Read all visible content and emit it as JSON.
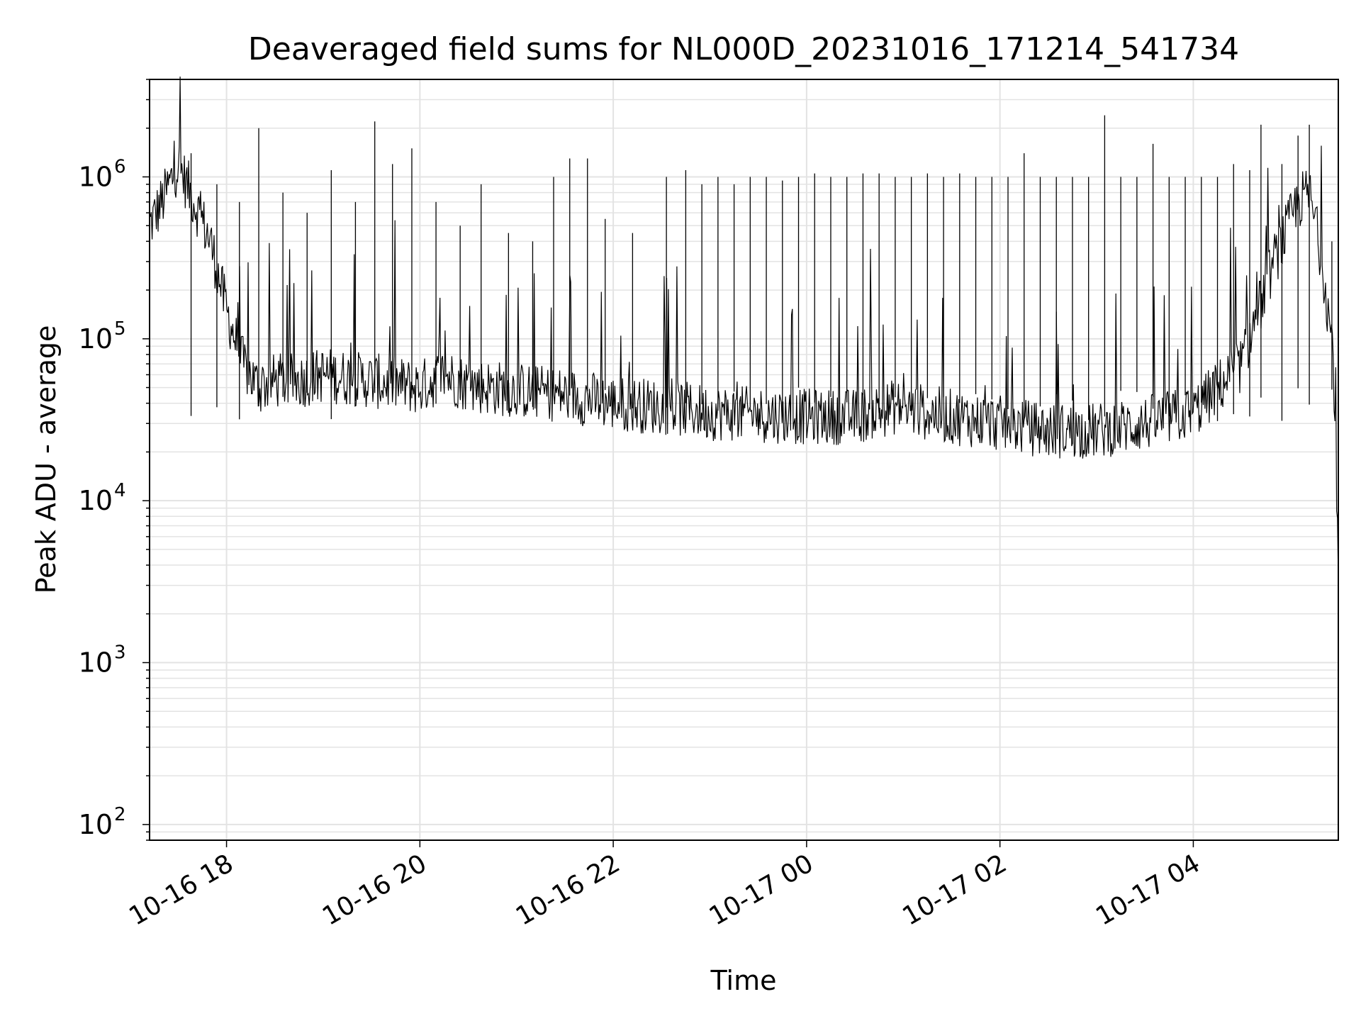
{
  "chart_data": {
    "type": "line",
    "title": "Deaveraged field sums for NL000D_20231016_171214_541734",
    "xlabel": "Time",
    "ylabel": "Peak ADU - average",
    "yscale": "log",
    "ylim": [
      80,
      4000000
    ],
    "xlim": [
      "2023-10-16T17:12:14",
      "2023-10-17T05:30:00"
    ],
    "x_ticks": [
      {
        "t": "2023-10-16T18:00:00",
        "label": "10-16 18"
      },
      {
        "t": "2023-10-16T20:00:00",
        "label": "10-16 20"
      },
      {
        "t": "2023-10-16T22:00:00",
        "label": "10-16 22"
      },
      {
        "t": "2023-10-17T00:00:00",
        "label": "10-17 00"
      },
      {
        "t": "2023-10-17T02:00:00",
        "label": "10-17 02"
      },
      {
        "t": "2023-10-17T04:00:00",
        "label": "10-17 04"
      }
    ],
    "y_ticks": [
      {
        "value": 100,
        "mantissa": "10",
        "exponent": "2"
      },
      {
        "value": 1000,
        "mantissa": "10",
        "exponent": "3"
      },
      {
        "value": 10000,
        "mantissa": "10",
        "exponent": "4"
      },
      {
        "value": 100000,
        "mantissa": "10",
        "exponent": "5"
      },
      {
        "value": 1000000,
        "mantissa": "10",
        "exponent": "6"
      }
    ],
    "grid": true,
    "line_color": "#000000",
    "grid_color": "#e3e3e3",
    "series": [
      {
        "x": [
          "2023-10-16T17:12:14",
          "2023-10-16T17:20:00",
          "2023-10-16T17:30:00",
          "2023-10-16T17:40:00",
          "2023-10-16T17:50:00",
          "2023-10-16T18:00:00",
          "2023-10-16T18:10:00",
          "2023-10-16T18:20:00",
          "2023-10-16T18:30:00",
          "2023-10-16T18:45:00",
          "2023-10-16T19:00:00",
          "2023-10-16T19:30:00",
          "2023-10-16T20:00:00",
          "2023-10-16T20:15:00",
          "2023-10-16T20:30:00",
          "2023-10-16T21:00:00",
          "2023-10-16T21:30:00",
          "2023-10-16T22:00:00",
          "2023-10-16T22:30:00",
          "2023-10-16T23:00:00",
          "2023-10-16T23:30:00",
          "2023-10-17T00:00:00",
          "2023-10-17T00:30:00",
          "2023-10-17T00:55:00",
          "2023-10-17T01:30:00",
          "2023-10-17T02:00:00",
          "2023-10-17T02:30:00",
          "2023-10-17T03:00:00",
          "2023-10-17T03:30:00",
          "2023-10-17T04:00:00",
          "2023-10-17T04:30:00",
          "2023-10-17T04:50:00",
          "2023-10-17T05:05:00",
          "2023-10-17T05:12:00",
          "2023-10-17T05:20:00",
          "2023-10-17T05:27:00",
          "2023-10-17T05:30:00"
        ],
        "values": [
          500000,
          700000,
          1200000,
          700000,
          400000,
          150000,
          70000,
          50000,
          55000,
          55000,
          60000,
          55000,
          50000,
          60000,
          52000,
          48000,
          45000,
          40000,
          38000,
          35000,
          34000,
          33000,
          33000,
          38000,
          33000,
          30000,
          27000,
          27000,
          30000,
          35000,
          70000,
          300000,
          700000,
          800000,
          300000,
          80000,
          3000
        ]
      }
    ],
    "spikes": [
      [
        "2023-10-16T17:38:00",
        1400000
      ],
      [
        "2023-10-16T17:54:00",
        900000
      ],
      [
        "2023-10-16T18:08:00",
        700000
      ],
      [
        "2023-10-16T18:20:00",
        2000000
      ],
      [
        "2023-10-16T18:35:00",
        800000
      ],
      [
        "2023-10-16T18:50:00",
        600000
      ],
      [
        "2023-10-16T19:05:00",
        1100000
      ],
      [
        "2023-10-16T19:20:00",
        700000
      ],
      [
        "2023-10-16T19:32:00",
        2200000
      ],
      [
        "2023-10-16T19:43:00",
        1200000
      ],
      [
        "2023-10-16T19:55:00",
        1500000
      ],
      [
        "2023-10-16T20:10:00",
        700000
      ],
      [
        "2023-10-16T20:25:00",
        500000
      ],
      [
        "2023-10-16T20:38:00",
        900000
      ],
      [
        "2023-10-16T20:55:00",
        450000
      ],
      [
        "2023-10-16T21:10:00",
        400000
      ],
      [
        "2023-10-16T21:23:00",
        1000000
      ],
      [
        "2023-10-16T21:33:00",
        1300000
      ],
      [
        "2023-10-16T21:44:00",
        1300000
      ],
      [
        "2023-10-16T21:55:00",
        550000
      ],
      [
        "2023-10-16T22:12:00",
        450000
      ],
      [
        "2023-10-16T22:33:00",
        1000000
      ],
      [
        "2023-10-16T22:45:00",
        1100000
      ],
      [
        "2023-10-16T22:55:00",
        900000
      ],
      [
        "2023-10-16T23:05:00",
        1000000
      ],
      [
        "2023-10-16T23:15:00",
        900000
      ],
      [
        "2023-10-16T23:25:00",
        1000000
      ],
      [
        "2023-10-16T23:35:00",
        1000000
      ],
      [
        "2023-10-16T23:45:00",
        950000
      ],
      [
        "2023-10-16T23:55:00",
        1000000
      ],
      [
        "2023-10-17T00:05:00",
        1050000
      ],
      [
        "2023-10-17T00:15:00",
        1000000
      ],
      [
        "2023-10-17T00:25:00",
        1000000
      ],
      [
        "2023-10-17T00:35:00",
        1050000
      ],
      [
        "2023-10-17T00:45:00",
        1050000
      ],
      [
        "2023-10-17T00:55:00",
        1000000
      ],
      [
        "2023-10-17T01:05:00",
        1000000
      ],
      [
        "2023-10-17T01:15:00",
        1050000
      ],
      [
        "2023-10-17T01:25:00",
        1000000
      ],
      [
        "2023-10-17T01:35:00",
        1050000
      ],
      [
        "2023-10-17T01:45:00",
        1000000
      ],
      [
        "2023-10-17T01:55:00",
        1000000
      ],
      [
        "2023-10-17T02:05:00",
        1000000
      ],
      [
        "2023-10-17T02:15:00",
        1400000
      ],
      [
        "2023-10-17T02:25:00",
        1000000
      ],
      [
        "2023-10-17T02:35:00",
        1000000
      ],
      [
        "2023-10-17T02:45:00",
        1000000
      ],
      [
        "2023-10-17T02:55:00",
        1000000
      ],
      [
        "2023-10-17T03:05:00",
        2400000
      ],
      [
        "2023-10-17T03:15:00",
        1000000
      ],
      [
        "2023-10-17T03:25:00",
        1000000
      ],
      [
        "2023-10-17T03:35:00",
        1600000
      ],
      [
        "2023-10-17T03:45:00",
        1000000
      ],
      [
        "2023-10-17T03:55:00",
        1000000
      ],
      [
        "2023-10-17T04:05:00",
        1000000
      ],
      [
        "2023-10-17T04:15:00",
        1000000
      ],
      [
        "2023-10-17T04:25:00",
        1200000
      ],
      [
        "2023-10-17T04:35:00",
        1100000
      ],
      [
        "2023-10-17T04:42:00",
        2100000
      ],
      [
        "2023-10-17T04:55:00",
        1200000
      ],
      [
        "2023-10-17T05:05:00",
        1800000
      ],
      [
        "2023-10-17T05:12:00",
        2100000
      ],
      [
        "2023-10-17T05:26:00",
        400000
      ]
    ]
  }
}
